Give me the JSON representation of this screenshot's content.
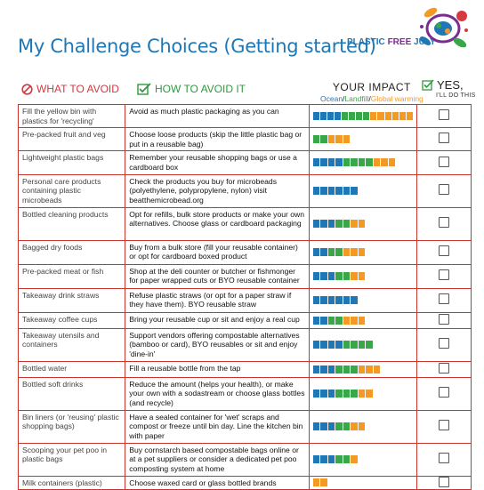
{
  "header": {
    "title": "My Challenge Choices (Getting started)",
    "campaign_plastic": "PLASTIC",
    "campaign_free": "FREE",
    "campaign_july": "JULY"
  },
  "columns": {
    "avoid": "WHAT TO AVOID",
    "how": "HOW TO AVOID IT",
    "impact": "YOUR IMPACT",
    "legend_ocean": "Ocean",
    "legend_landfill": "Landfill",
    "legend_gw": "Global warming",
    "yes": "YES,",
    "ill_do_this": "I'LL DO THIS"
  },
  "colors": {
    "ocean": "#1f77b6",
    "landfill": "#3aa64a",
    "global_warming": "#f39a26",
    "border": "#c9342e",
    "title": "#1f77b6"
  },
  "rows": [
    {
      "avoid": "Fill the yellow bin with plastics for 'recycling'",
      "how": "Avoid as much plastic packaging as you can",
      "impact": {
        "ocean": 4,
        "landfill": 4,
        "gw": 6
      },
      "checked": false
    },
    {
      "avoid": "Pre-packed fruit and veg",
      "how": "Choose loose products (skip the little plastic bag or put in a reusable bag)",
      "impact": {
        "ocean": 0,
        "landfill": 2,
        "gw": 3
      },
      "checked": false
    },
    {
      "avoid": "Lightweight plastic bags",
      "how": "Remember your reusable shopping bags or use a cardboard box",
      "impact": {
        "ocean": 4,
        "landfill": 4,
        "gw": 3
      },
      "checked": false
    },
    {
      "avoid": "Personal care products containing plastic microbeads",
      "how": "Check the products you buy for microbeads (polyethylene, polypropylene, nylon) visit beatthemicrobead.org",
      "impact": {
        "ocean": 6,
        "landfill": 0,
        "gw": 0
      },
      "checked": false
    },
    {
      "avoid": "Bottled cleaning products",
      "how": "Opt for refills, bulk store products or make your own alternatives. Choose glass or cardboard packaging",
      "impact": {
        "ocean": 3,
        "landfill": 2,
        "gw": 2
      },
      "checked": false
    },
    {
      "avoid": "Bagged dry foods",
      "how": "Buy from a bulk store (fill your reusable container) or opt for cardboard boxed product",
      "impact": {
        "ocean": 2,
        "landfill": 2,
        "gw": 3
      },
      "checked": false
    },
    {
      "avoid": "Pre-packed meat or fish",
      "how": "Shop at the deli counter or butcher or fishmonger for paper wrapped cuts or BYO reusable container",
      "impact": {
        "ocean": 3,
        "landfill": 2,
        "gw": 2
      },
      "checked": false
    },
    {
      "avoid": "Takeaway drink straws",
      "how": "Refuse plastic straws (or opt for a paper straw if they have them). BYO reusable straw",
      "impact": {
        "ocean": 6,
        "landfill": 0,
        "gw": 0
      },
      "checked": false
    },
    {
      "avoid": "Takeaway coffee cups",
      "how": "Bring your reusable cup or sit and enjoy a real cup",
      "impact": {
        "ocean": 2,
        "landfill": 2,
        "gw": 3
      },
      "checked": false
    },
    {
      "avoid": "Takeaway utensils and containers",
      "how": "Support vendors offering compostable alternatives (bamboo or card), BYO reusables or sit and enjoy 'dine-in'",
      "impact": {
        "ocean": 4,
        "landfill": 4,
        "gw": 0
      },
      "checked": false
    },
    {
      "avoid": "Bottled water",
      "how": "Fill a reusable bottle from the tap",
      "impact": {
        "ocean": 3,
        "landfill": 3,
        "gw": 3
      },
      "checked": false
    },
    {
      "avoid": "Bottled soft drinks",
      "how": "Reduce the amount (helps your health), or make your own with a sodastream or choose glass bottles (and recycle)",
      "impact": {
        "ocean": 3,
        "landfill": 3,
        "gw": 2
      },
      "checked": false
    },
    {
      "avoid": "Bin liners (or 'reusing' plastic shopping bags)",
      "how": "Have a sealed container for 'wet' scraps and compost or freeze until bin day. Line the kitchen bin with paper",
      "impact": {
        "ocean": 3,
        "landfill": 2,
        "gw": 2
      },
      "checked": false
    },
    {
      "avoid": "Scooping your pet poo in plastic bags",
      "how": "Buy cornstarch based compostable bags online or at a pet suppliers or consider a dedicated pet poo composting system at home",
      "impact": {
        "ocean": 3,
        "landfill": 2,
        "gw": 1
      },
      "checked": false
    },
    {
      "avoid": "Milk containers (plastic)",
      "how": "Choose waxed card or glass bottled brands",
      "impact": {
        "ocean": 0,
        "landfill": 0,
        "gw": 2
      },
      "checked": false
    }
  ]
}
